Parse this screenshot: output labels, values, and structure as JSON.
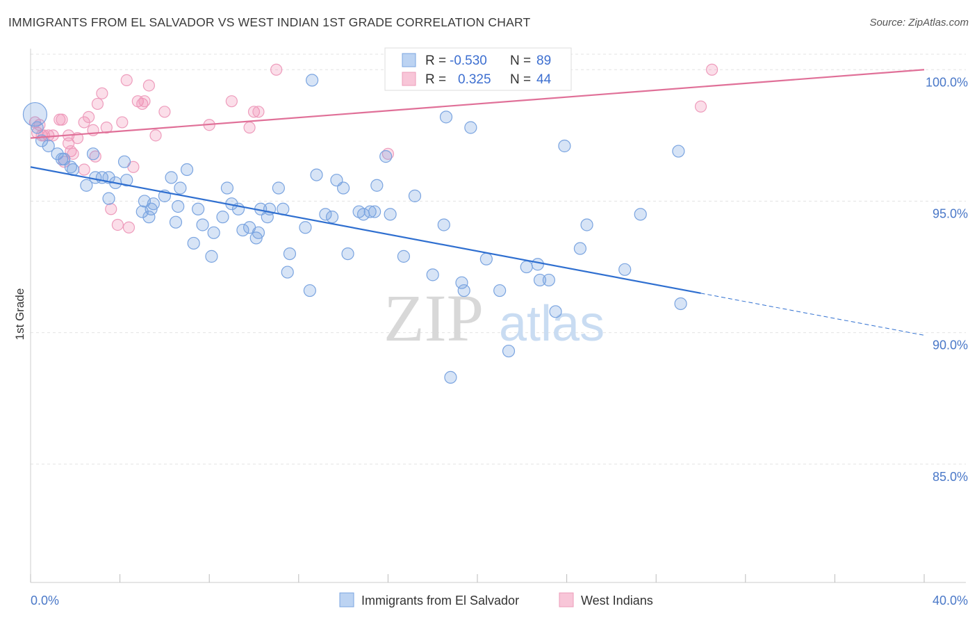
{
  "title": "IMMIGRANTS FROM EL SALVADOR VS WEST INDIAN 1ST GRADE CORRELATION CHART",
  "source": "Source: ZipAtlas.com",
  "colors": {
    "blue": "#6f9fe0",
    "blue_line": "#2f6fd0",
    "pink": "#f08ab0",
    "pink_line": "#e07098",
    "tick_text": "#4a78c8"
  },
  "watermark": {
    "zip": "ZIP",
    "atlas": "atlas"
  },
  "legend": {
    "r_label": "R =",
    "n_label": "N =",
    "blue": {
      "r": "-0.530",
      "n": "89"
    },
    "pink": {
      "r": "0.325",
      "n": "44"
    }
  },
  "bottom_legend": {
    "blue_label": "Immigrants from El Salvador",
    "pink_label": "West Indians"
  },
  "chart_data": {
    "type": "scatter",
    "title": "IMMIGRANTS FROM EL SALVADOR VS WEST INDIAN 1ST GRADE CORRELATION CHART",
    "xlabel": "",
    "ylabel": "1st Grade",
    "xlim": [
      0,
      40
    ],
    "ylim": [
      80.5,
      100.8
    ],
    "x_tick_labels": [
      "0.0%",
      "40.0%"
    ],
    "y_ticks": [
      85,
      90,
      95,
      100
    ],
    "y_tick_labels": [
      "85.0%",
      "90.0%",
      "95.0%",
      "100.0%"
    ],
    "grid": true,
    "series": [
      {
        "name": "Immigrants from El Salvador",
        "r": -0.53,
        "n": 89,
        "trend": {
          "x0": 0,
          "y0": 96.3,
          "x1": 30,
          "y1": 91.5,
          "dashed_to_x": 40,
          "dashed_to_y": 89.9
        },
        "points": [
          [
            0.2,
            98.3
          ],
          [
            0.3,
            97.8
          ],
          [
            0.5,
            97.3
          ],
          [
            0.8,
            97.1
          ],
          [
            1.2,
            96.8
          ],
          [
            1.4,
            96.6
          ],
          [
            1.8,
            96.3
          ],
          [
            1.9,
            96.2
          ],
          [
            2.8,
            96.8
          ],
          [
            1.5,
            96.6
          ],
          [
            2.5,
            95.6
          ],
          [
            2.9,
            95.9
          ],
          [
            3.2,
            95.9
          ],
          [
            3.5,
            95.9
          ],
          [
            3.8,
            95.7
          ],
          [
            4.3,
            95.8
          ],
          [
            4.2,
            96.5
          ],
          [
            5.1,
            95.0
          ],
          [
            5.5,
            94.9
          ],
          [
            5.4,
            94.7
          ],
          [
            5.0,
            94.6
          ],
          [
            5.3,
            94.4
          ],
          [
            6.0,
            95.2
          ],
          [
            6.3,
            95.9
          ],
          [
            6.7,
            95.5
          ],
          [
            6.5,
            94.2
          ],
          [
            7.0,
            96.2
          ],
          [
            7.5,
            94.7
          ],
          [
            7.7,
            94.1
          ],
          [
            7.3,
            93.4
          ],
          [
            8.2,
            93.8
          ],
          [
            8.1,
            92.9
          ],
          [
            8.6,
            94.4
          ],
          [
            8.8,
            95.5
          ],
          [
            9.0,
            94.9
          ],
          [
            9.3,
            94.7
          ],
          [
            9.5,
            93.9
          ],
          [
            9.8,
            94.0
          ],
          [
            10.1,
            93.6
          ],
          [
            10.2,
            93.8
          ],
          [
            10.3,
            94.7
          ],
          [
            10.7,
            94.7
          ],
          [
            11.3,
            94.7
          ],
          [
            11.1,
            95.5
          ],
          [
            11.5,
            92.3
          ],
          [
            11.6,
            93.0
          ],
          [
            12.3,
            94.0
          ],
          [
            12.5,
            91.6
          ],
          [
            12.8,
            96.0
          ],
          [
            13.2,
            94.5
          ],
          [
            13.5,
            94.4
          ],
          [
            13.7,
            95.8
          ],
          [
            14.0,
            95.5
          ],
          [
            14.2,
            93.0
          ],
          [
            14.7,
            94.6
          ],
          [
            14.9,
            94.5
          ],
          [
            15.2,
            94.6
          ],
          [
            15.5,
            95.6
          ],
          [
            15.4,
            94.6
          ],
          [
            15.9,
            96.7
          ],
          [
            16.1,
            94.5
          ],
          [
            16.7,
            92.9
          ],
          [
            17.2,
            95.2
          ],
          [
            18.0,
            92.2
          ],
          [
            18.5,
            94.1
          ],
          [
            18.6,
            98.2
          ],
          [
            19.3,
            91.9
          ],
          [
            19.4,
            91.6
          ],
          [
            19.7,
            97.8
          ],
          [
            20.4,
            92.8
          ],
          [
            21.0,
            91.6
          ],
          [
            21.4,
            89.3
          ],
          [
            18.8,
            88.3
          ],
          [
            22.2,
            92.5
          ],
          [
            22.7,
            92.6
          ],
          [
            22.8,
            92.0
          ],
          [
            23.2,
            92.0
          ],
          [
            23.5,
            90.8
          ],
          [
            23.9,
            97.1
          ],
          [
            24.6,
            93.2
          ],
          [
            24.9,
            94.1
          ],
          [
            26.6,
            92.4
          ],
          [
            27.3,
            94.5
          ],
          [
            29.0,
            96.9
          ],
          [
            29.1,
            91.1
          ],
          [
            12.6,
            99.6
          ],
          [
            3.5,
            95.1
          ],
          [
            6.6,
            94.8
          ],
          [
            10.6,
            94.4
          ]
        ]
      },
      {
        "name": "West Indians",
        "r": 0.325,
        "n": 44,
        "trend": {
          "x0": 0,
          "y0": 97.4,
          "x1": 40,
          "y1": 100.0
        },
        "points": [
          [
            0.2,
            98.0
          ],
          [
            0.3,
            97.6
          ],
          [
            0.4,
            97.9
          ],
          [
            0.5,
            97.5
          ],
          [
            0.6,
            97.5
          ],
          [
            0.8,
            97.5
          ],
          [
            1.0,
            97.5
          ],
          [
            1.3,
            98.1
          ],
          [
            1.4,
            98.1
          ],
          [
            1.7,
            97.2
          ],
          [
            1.5,
            96.5
          ],
          [
            1.8,
            96.9
          ],
          [
            1.7,
            97.5
          ],
          [
            2.1,
            97.4
          ],
          [
            2.4,
            98.0
          ],
          [
            2.6,
            98.2
          ],
          [
            2.8,
            97.7
          ],
          [
            2.9,
            96.7
          ],
          [
            3.0,
            98.7
          ],
          [
            3.2,
            99.1
          ],
          [
            3.4,
            97.8
          ],
          [
            3.6,
            94.7
          ],
          [
            3.9,
            94.1
          ],
          [
            4.1,
            98.0
          ],
          [
            4.3,
            99.6
          ],
          [
            4.4,
            94.0
          ],
          [
            4.6,
            96.3
          ],
          [
            4.8,
            98.8
          ],
          [
            5.0,
            98.7
          ],
          [
            5.1,
            98.8
          ],
          [
            5.3,
            99.4
          ],
          [
            5.6,
            97.5
          ],
          [
            6.0,
            98.4
          ],
          [
            8.0,
            97.9
          ],
          [
            9.0,
            98.8
          ],
          [
            9.8,
            97.8
          ],
          [
            10.0,
            98.4
          ],
          [
            10.2,
            98.4
          ],
          [
            11.0,
            100.0
          ],
          [
            16.0,
            96.8
          ],
          [
            30.0,
            98.6
          ],
          [
            30.5,
            100.0
          ],
          [
            2.4,
            96.2
          ],
          [
            1.9,
            96.8
          ]
        ]
      }
    ]
  }
}
